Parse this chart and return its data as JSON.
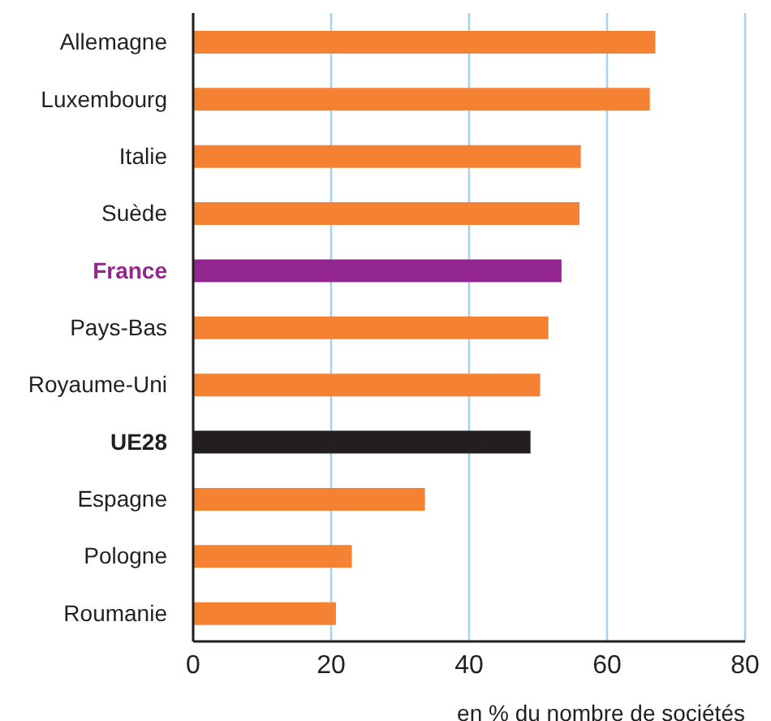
{
  "chart_data": {
    "type": "bar",
    "orientation": "horizontal",
    "xlabel": "en % du nombre de sociétés",
    "categories": [
      "Allemagne",
      "Luxembourg",
      "Italie",
      "Suède",
      "France",
      "Pays-Bas",
      "Royaume-Uni",
      "UE28",
      "Espagne",
      "Pologne",
      "Roumanie"
    ],
    "values": [
      67.0,
      66.2,
      56.2,
      56.0,
      53.4,
      51.5,
      50.3,
      48.9,
      33.6,
      23.0,
      20.7
    ],
    "color": "#f58233",
    "colors": [
      "#f58233",
      "#f58233",
      "#f58233",
      "#f58233",
      "#93278f",
      "#f58233",
      "#f58233",
      "#231f20",
      "#f58233",
      "#f58233",
      "#f58233"
    ],
    "xlim": [
      0,
      80
    ],
    "xticks": [
      0,
      20,
      40,
      60,
      80
    ],
    "grid": "x"
  }
}
